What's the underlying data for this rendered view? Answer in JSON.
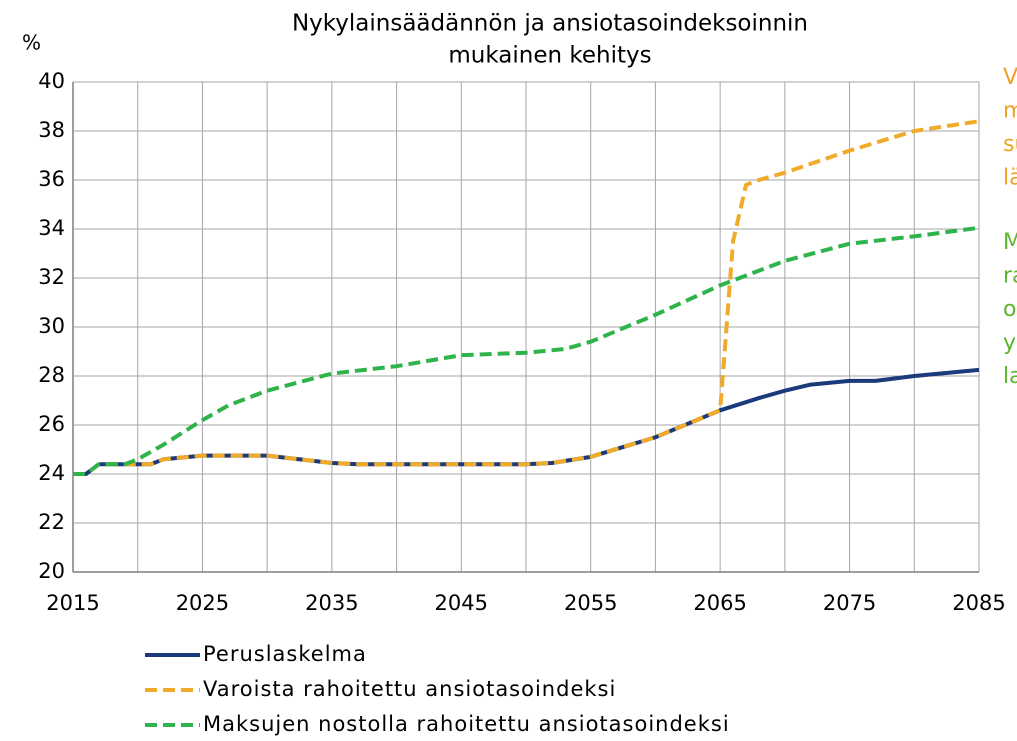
{
  "chart_data": {
    "type": "line",
    "title": [
      "Nykylainsäädännön ja ansiotasoindeksoinnin",
      "mukainen kehitys"
    ],
    "ylabel": "%",
    "xlim": [
      2015,
      2085
    ],
    "ylim": [
      20,
      40
    ],
    "xticks": [
      2015,
      2025,
      2035,
      2045,
      2055,
      2065,
      2075,
      2085
    ],
    "xgrid": [
      2015,
      2020,
      2025,
      2030,
      2035,
      2040,
      2045,
      2050,
      2055,
      2060,
      2065,
      2070,
      2075,
      2080,
      2085
    ],
    "yticks": [
      20,
      22,
      24,
      26,
      28,
      30,
      32,
      34,
      36,
      38,
      40
    ],
    "grid": true,
    "legend": "bottom",
    "series": [
      {
        "name": "Peruslaskelma",
        "color": "#1b3a7c",
        "dash": "solid",
        "x": [
          2015,
          2016,
          2017,
          2019,
          2021,
          2022,
          2025,
          2030,
          2035,
          2037,
          2045,
          2050,
          2052,
          2055,
          2060,
          2065,
          2068,
          2070,
          2072,
          2075,
          2077,
          2080,
          2085
        ],
        "values": [
          24,
          24,
          24.4,
          24.4,
          24.4,
          24.6,
          24.75,
          24.75,
          24.45,
          24.4,
          24.4,
          24.4,
          24.45,
          24.7,
          25.5,
          26.6,
          27.1,
          27.4,
          27.65,
          27.8,
          27.8,
          28.0,
          28.25
        ]
      },
      {
        "name": "Varoista rahoitettu ansiotasoindeksi",
        "color": "#f0ab2a",
        "dash": "dashed",
        "x": [
          2015,
          2016,
          2017,
          2019,
          2021,
          2022,
          2025,
          2030,
          2035,
          2037,
          2045,
          2050,
          2052,
          2055,
          2060,
          2065,
          2066,
          2067,
          2068,
          2070,
          2075,
          2080,
          2085
        ],
        "values": [
          24,
          24,
          24.4,
          24.4,
          24.4,
          24.6,
          24.75,
          24.75,
          24.45,
          24.4,
          24.4,
          24.4,
          24.45,
          24.7,
          25.5,
          26.6,
          33.5,
          35.8,
          36.0,
          36.3,
          37.2,
          38.0,
          38.4
        ]
      },
      {
        "name": "Maksujen nostolla rahoitettu ansiotasoindeksi",
        "color": "#2fb34b",
        "dash": "dashed",
        "x": [
          2015,
          2016,
          2017,
          2019,
          2020,
          2022,
          2025,
          2027,
          2030,
          2035,
          2040,
          2045,
          2050,
          2053,
          2055,
          2060,
          2065,
          2070,
          2075,
          2080,
          2085
        ],
        "values": [
          24,
          24,
          24.4,
          24.4,
          24.6,
          25.2,
          26.2,
          26.8,
          27.4,
          28.1,
          28.4,
          28.85,
          28.95,
          29.1,
          29.4,
          30.5,
          31.7,
          32.7,
          33.4,
          33.7,
          34.05
        ]
      }
    ],
    "annotations": [
      {
        "color": "#eca422",
        "lines": [
          "V",
          "m",
          "su",
          "lä"
        ]
      },
      {
        "color": "#5db52e",
        "lines": [
          "M",
          "ra",
          "o",
          "y",
          "la"
        ]
      }
    ]
  }
}
